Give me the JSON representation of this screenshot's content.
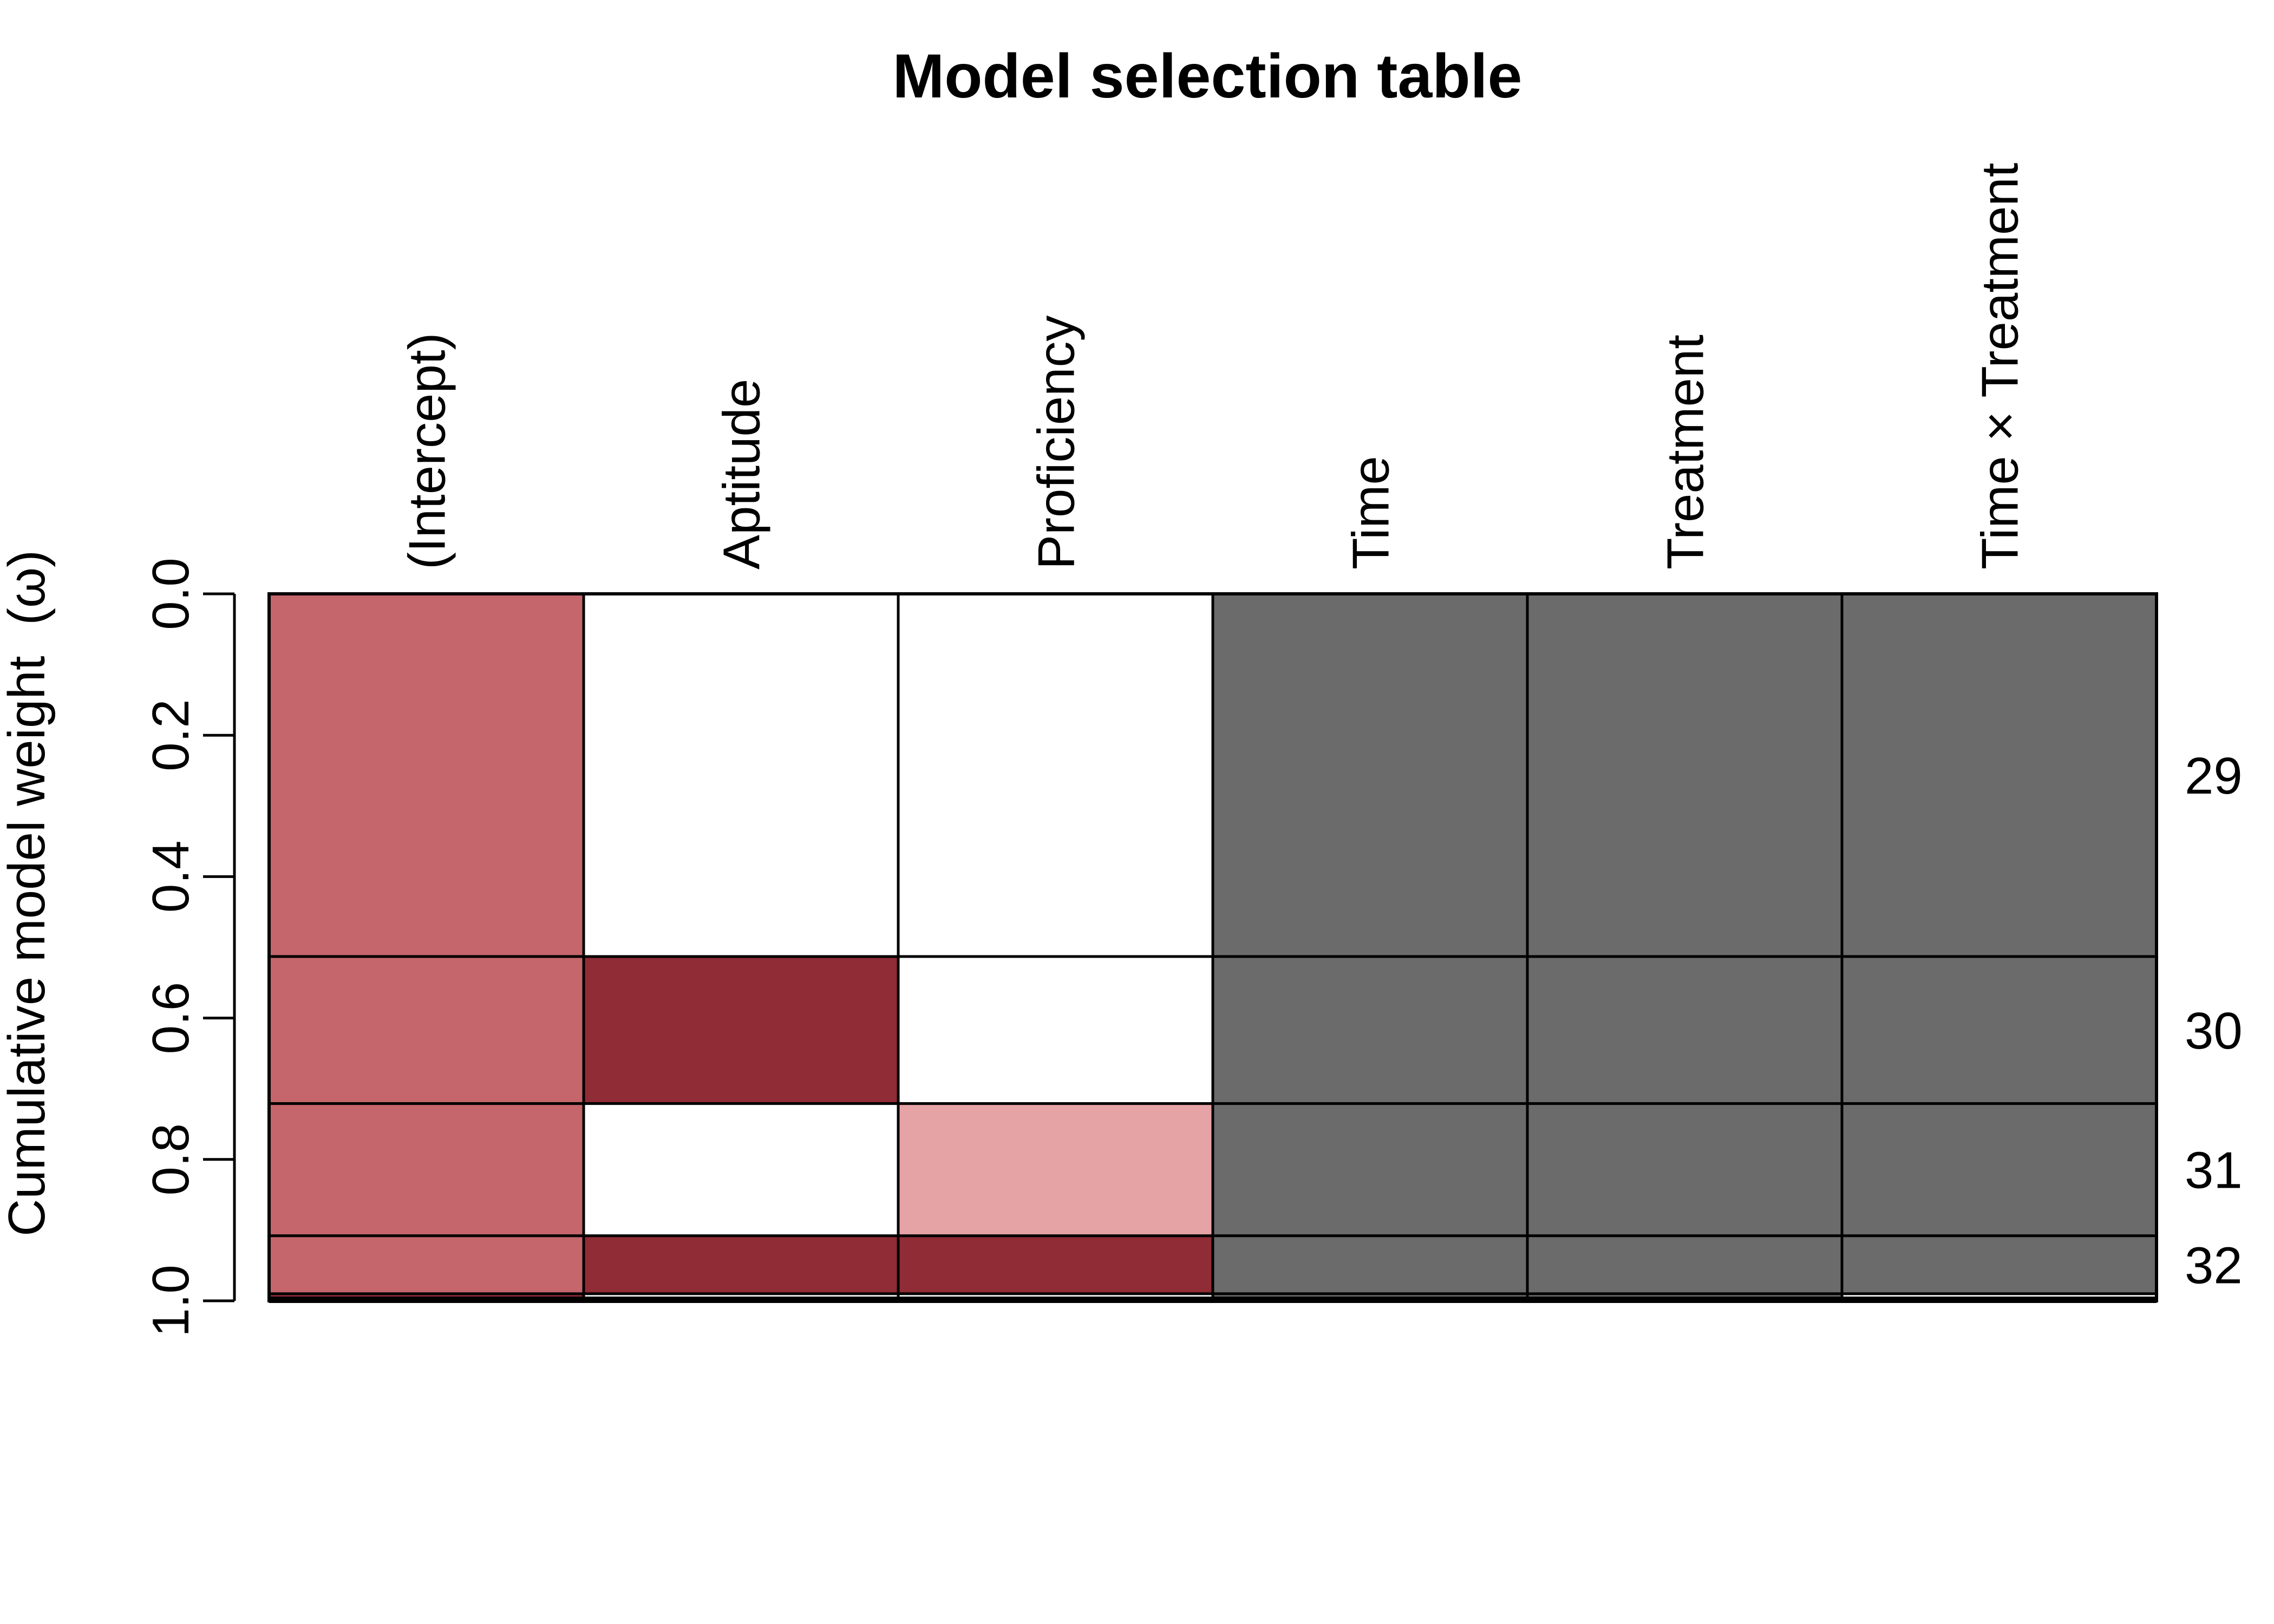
{
  "chart_data": {
    "type": "heatmap",
    "title": "Model selection table",
    "ylabel": "Cumulative model weight",
    "ylabel_symbol": "(ω)",
    "ylim": [
      0,
      1
    ],
    "y_ticks": [
      "0.0",
      "0.2",
      "0.4",
      "0.6",
      "0.8",
      "1.0"
    ],
    "columns": [
      "(Intercept)",
      "Aptitude",
      "Proficiency",
      "Time",
      "Treatment",
      "Time × Treatment"
    ],
    "colors": {
      "intercept": "#c4666b",
      "positive_strong": "#8f2c35",
      "positive_light": "#e6a3a5",
      "interaction_term": "#6b6b6b",
      "absent": "#ffffff",
      "border": "#000000"
    },
    "models": [
      {
        "label": "29",
        "weight": 0.513,
        "cells": [
          "intercept",
          "absent",
          "absent",
          "interaction_term",
          "interaction_term",
          "interaction_term"
        ]
      },
      {
        "label": "30",
        "weight": 0.208,
        "cells": [
          "intercept",
          "positive_strong",
          "absent",
          "interaction_term",
          "interaction_term",
          "interaction_term"
        ]
      },
      {
        "label": "31",
        "weight": 0.187,
        "cells": [
          "intercept",
          "absent",
          "positive_light",
          "interaction_term",
          "interaction_term",
          "interaction_term"
        ]
      },
      {
        "label": "32",
        "weight": 0.082,
        "cells": [
          "intercept",
          "positive_strong",
          "positive_strong",
          "interaction_term",
          "interaction_term",
          "interaction_term"
        ]
      },
      {
        "label": "",
        "weight": 0.006,
        "cells": [
          "positive_strong",
          "absent",
          "absent",
          "interaction_term",
          "interaction_term",
          "absent"
        ]
      },
      {
        "label": "",
        "weight": 0.004,
        "cells": [
          "positive_strong",
          "absent",
          "absent",
          "interaction_term",
          "interaction_term",
          "absent"
        ]
      }
    ]
  }
}
